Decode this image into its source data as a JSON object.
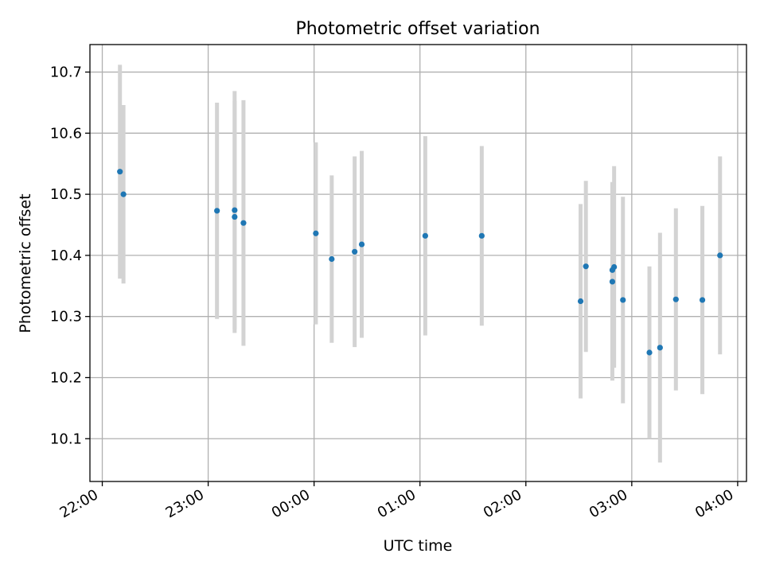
{
  "chart_data": {
    "type": "scatter",
    "title": "Photometric offset variation",
    "xlabel": "UTC time",
    "ylabel": "Photometric offset",
    "x_is_time": true,
    "xlim": [
      "21:53",
      "04:05"
    ],
    "ylim": [
      10.03,
      10.745
    ],
    "grid": true,
    "x_ticks": [
      "22:00",
      "23:00",
      "00:00",
      "01:00",
      "02:00",
      "03:00",
      "04:00"
    ],
    "y_ticks": [
      "10.1",
      "10.2",
      "10.3",
      "10.4",
      "10.5",
      "10.6",
      "10.7"
    ],
    "colors": {
      "point": "#1f77b4",
      "errorbar": "#d3d3d3",
      "grid": "#b0b0b0",
      "axes": "#000000"
    },
    "series": [
      {
        "points": [
          {
            "x": "22:10",
            "y": 10.537,
            "err": 0.175
          },
          {
            "x": "22:12",
            "y": 10.5,
            "err": 0.146
          },
          {
            "x": "23:05",
            "y": 10.473,
            "err": 0.177
          },
          {
            "x": "23:15",
            "y": 10.474,
            "err": 0.195
          },
          {
            "x": "23:15",
            "y": 10.463,
            "err": 0.19
          },
          {
            "x": "23:20",
            "y": 10.453,
            "err": 0.201
          },
          {
            "x": "00:01",
            "y": 10.436,
            "err": 0.149
          },
          {
            "x": "00:10",
            "y": 10.394,
            "err": 0.137
          },
          {
            "x": "00:23",
            "y": 10.406,
            "err": 0.156
          },
          {
            "x": "00:27",
            "y": 10.418,
            "err": 0.153
          },
          {
            "x": "01:03",
            "y": 10.432,
            "err": 0.163
          },
          {
            "x": "01:35",
            "y": 10.432,
            "err": 0.147
          },
          {
            "x": "02:31",
            "y": 10.325,
            "err": 0.159
          },
          {
            "x": "02:34",
            "y": 10.382,
            "err": 0.14
          },
          {
            "x": "02:49",
            "y": 10.376,
            "err": 0.144
          },
          {
            "x": "02:49",
            "y": 10.357,
            "err": 0.162
          },
          {
            "x": "02:50",
            "y": 10.381,
            "err": 0.165
          },
          {
            "x": "02:55",
            "y": 10.327,
            "err": 0.169
          },
          {
            "x": "03:10",
            "y": 10.241,
            "err": 0.141
          },
          {
            "x": "03:16",
            "y": 10.249,
            "err": 0.188
          },
          {
            "x": "03:25",
            "y": 10.328,
            "err": 0.149
          },
          {
            "x": "03:40",
            "y": 10.327,
            "err": 0.154
          },
          {
            "x": "03:50",
            "y": 10.4,
            "err": 0.162
          }
        ]
      }
    ]
  }
}
